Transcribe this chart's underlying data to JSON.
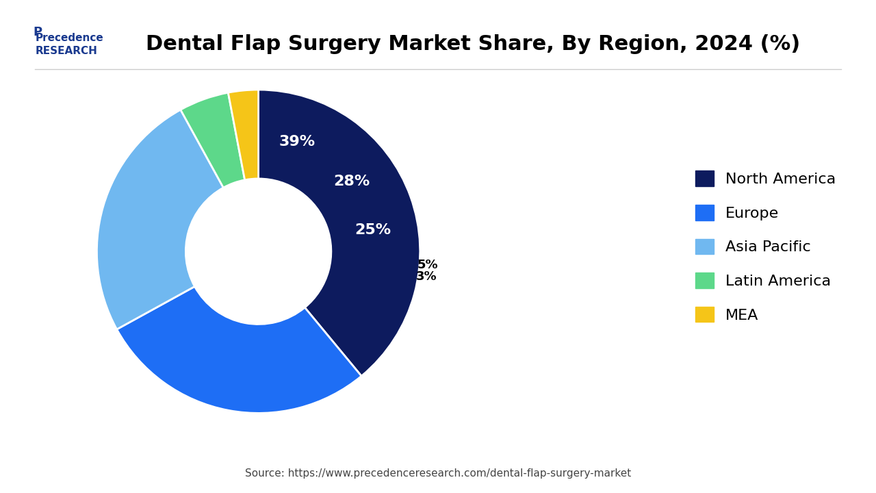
{
  "title": "Dental Flap Surgery Market Share, By Region, 2024 (%)",
  "labels": [
    "North America",
    "Europe",
    "Asia Pacific",
    "Latin America",
    "MEA"
  ],
  "values": [
    39,
    28,
    25,
    5,
    3
  ],
  "colors": [
    "#0d1b5e",
    "#1e6ef5",
    "#70b8f0",
    "#5dd88a",
    "#f5c518"
  ],
  "pct_labels": [
    "39%",
    "28%",
    "25%",
    "5%",
    "3%"
  ],
  "pct_label_colors": [
    "white",
    "white",
    "white",
    "black",
    "black"
  ],
  "source_text": "Source: https://www.precedenceresearch.com/dental-flap-surgery-market",
  "logo_text": "Precedence\nRESEARCH",
  "background_color": "#ffffff",
  "wedge_edge_color": "white",
  "title_fontsize": 22,
  "legend_fontsize": 16,
  "pct_fontsize": 16
}
